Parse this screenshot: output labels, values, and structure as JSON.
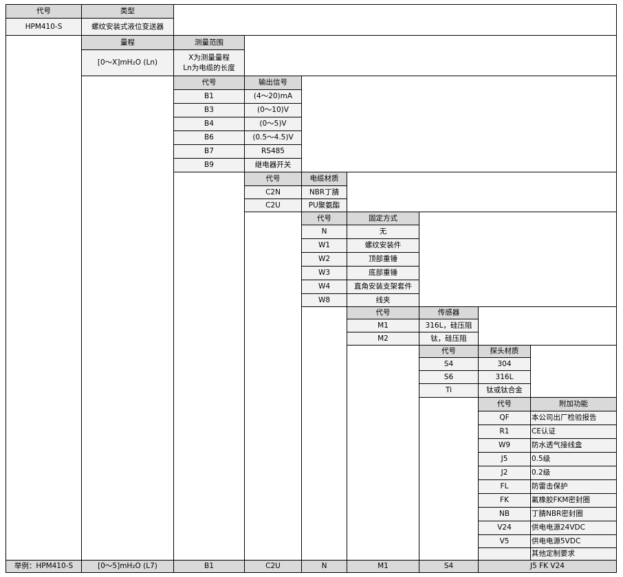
{
  "levels": [
    {
      "headers": [
        "代号",
        "类型"
      ],
      "rows": [
        [
          "HPM410-S",
          "螺纹安装式液位变送器"
        ]
      ]
    },
    {
      "headers": [
        "量程",
        "测量范围"
      ],
      "rows": [
        [
          "[0～X]mH₂O (Ln)",
          "X为测量量程\nLn为电缆的长度"
        ]
      ]
    },
    {
      "headers": [
        "代号",
        "输出信号"
      ],
      "rows": [
        [
          "B1",
          "(4～20)mA"
        ],
        [
          "B3",
          "(0～10)V"
        ],
        [
          "B4",
          "(0～5)V"
        ],
        [
          "B6",
          "(0.5～4.5)V"
        ],
        [
          "B7",
          "RS485"
        ],
        [
          "B9",
          "继电器开关"
        ]
      ]
    },
    {
      "headers": [
        "代号",
        "电缆材质"
      ],
      "rows": [
        [
          "C2N",
          "NBR丁腈"
        ],
        [
          "C2U",
          "PU聚氨酯"
        ]
      ]
    },
    {
      "headers": [
        "代号",
        "固定方式"
      ],
      "rows": [
        [
          "N",
          "无"
        ],
        [
          "W1",
          "螺纹安装件"
        ],
        [
          "W2",
          "顶部重锤"
        ],
        [
          "W3",
          "底部重锤"
        ],
        [
          "W4",
          "直角安装支架套件"
        ],
        [
          "W8",
          "线夹"
        ]
      ]
    },
    {
      "headers": [
        "代号",
        "传感器"
      ],
      "rows": [
        [
          "M1",
          "316L，硅压阻"
        ],
        [
          "M2",
          "钛，硅压阻"
        ]
      ]
    },
    {
      "headers": [
        "代号",
        "探头材质"
      ],
      "rows": [
        [
          "S4",
          "304"
        ],
        [
          "S6",
          "316L"
        ],
        [
          "Ti",
          "钛或钛合金"
        ]
      ]
    },
    {
      "headers": [
        "代号",
        "附加功能"
      ],
      "rows": [
        [
          "QF",
          "本公司出厂检验报告"
        ],
        [
          "R1",
          "CE认证"
        ],
        [
          "W9",
          "防水透气接线盒"
        ],
        [
          "J5",
          "0.5级"
        ],
        [
          "J2",
          "0.2级"
        ],
        [
          "FL",
          "防雷击保护"
        ],
        [
          "FK",
          "氟橡胶FKM密封圈"
        ],
        [
          "NB",
          "丁腈NBR密封圈"
        ],
        [
          "V24",
          "供电电源24VDC"
        ],
        [
          "V5",
          "供电电源5VDC"
        ],
        [
          "",
          "其他定制要求"
        ]
      ]
    }
  ],
  "example": [
    "举例：HPM410-S",
    "[0～5]mH₂O (L7)",
    "B1",
    "C2U",
    "N",
    "M1",
    "S4",
    "J5 FK V24"
  ],
  "colors": {
    "header_bg": "#d9d9d9",
    "cell_bg": "#f2f2f2",
    "border": "#000000"
  }
}
